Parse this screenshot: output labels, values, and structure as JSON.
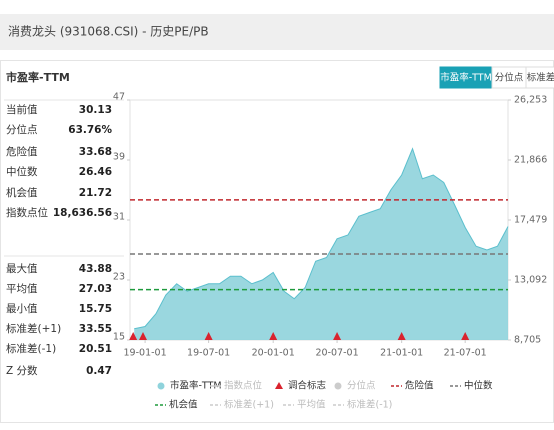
{
  "header": {
    "title": "消费龙头 (931068.CSI) - 历史PE/PB"
  },
  "panel_title": "市盈率-TTM",
  "tabs": [
    "市盈率-TTM",
    "分位点",
    "标准差"
  ],
  "stats_top": [
    {
      "label": "当前值",
      "value": "30.13"
    },
    {
      "label": "分位点",
      "value": "63.76%"
    },
    {
      "label": "危险值",
      "value": "33.68"
    },
    {
      "label": "中位数",
      "value": "26.46"
    },
    {
      "label": "机会值",
      "value": "21.72"
    },
    {
      "label": "指数点位",
      "value": "18,636.56"
    }
  ],
  "stats_bottom": [
    {
      "label": "最大值",
      "value": "43.88"
    },
    {
      "label": "平均值",
      "value": "27.03"
    },
    {
      "label": "最小值",
      "value": "15.75"
    },
    {
      "label": "标准差(+1)",
      "value": "33.55"
    },
    {
      "label": "标准差(-1)",
      "value": "20.51"
    },
    {
      "label": "Z 分数",
      "value": "0.47"
    }
  ],
  "chart_data": {
    "type": "area",
    "x": [
      "18-12-01",
      "19-01-01",
      "19-02-01",
      "19-03-01",
      "19-04-01",
      "19-05-01",
      "19-06-01",
      "19-07-01",
      "19-08-01",
      "19-09-01",
      "19-10-01",
      "19-11-01",
      "19-12-01",
      "20-01-01",
      "20-02-01",
      "20-03-01",
      "20-04-01",
      "20-05-01",
      "20-06-01",
      "20-07-01",
      "20-08-01",
      "20-09-01",
      "20-10-01",
      "20-11-01",
      "20-12-01",
      "21-01-01",
      "21-02-01",
      "21-03-01",
      "21-04-01",
      "21-05-01",
      "21-06-01",
      "21-07-01",
      "21-08-01",
      "21-09-01",
      "21-10-01",
      "21-10-31"
    ],
    "series": [
      {
        "name": "市盈率-TTM",
        "color": "#8fd3dc",
        "values": [
          16.5,
          16.8,
          18.5,
          21,
          22.5,
          21.5,
          22,
          22.5,
          22.5,
          23.5,
          23.5,
          22.5,
          23,
          24,
          21.5,
          20.5,
          22,
          25.5,
          26,
          28.5,
          29,
          31.5,
          32,
          32.5,
          35,
          37,
          40.5,
          36.5,
          37,
          36,
          33,
          30,
          27.5,
          27,
          27.5,
          30.13
        ]
      }
    ],
    "xlim": [
      "18-11-19",
      "21-10-31"
    ],
    "xticks": [
      "19-01-01",
      "19-07-01",
      "20-01-01",
      "20-07-01",
      "21-01-01",
      "21-07-01"
    ],
    "ylim": [
      15,
      47
    ],
    "yticks": [
      15,
      23,
      31,
      39,
      47
    ],
    "y2lim": [
      8705,
      26253
    ],
    "y2ticks": [
      {
        "value": 8705,
        "label": "8,705"
      },
      {
        "value": 13092,
        "label": "13,092"
      },
      {
        "value": 17479,
        "label": "17,479"
      },
      {
        "value": 21866,
        "label": "21,866"
      },
      {
        "value": 26253,
        "label": "26,253"
      }
    ],
    "reference_lines": [
      {
        "value": 33.68,
        "color": "#c0272d"
      },
      {
        "value": 26.46,
        "color": "#777777"
      },
      {
        "value": 21.72,
        "color": "#1e9a3c"
      }
    ],
    "markers": {
      "color": "#d9232e",
      "x": [
        "18-11-28",
        "18-12-26",
        "19-07-01",
        "20-01-01",
        "20-07-01",
        "21-01-01",
        "21-07-01"
      ]
    },
    "legend": [
      {
        "name": "市盈率-TTM",
        "symbol": "dot",
        "color": "#8fd3dc",
        "active": true
      },
      {
        "name": "指数点位",
        "symbol": "line",
        "color": "#cccccc",
        "active": false
      },
      {
        "name": "调合标志",
        "symbol": "triangle",
        "color": "#d9232e",
        "active": true
      },
      {
        "name": "分位点",
        "symbol": "dot",
        "color": "#cccccc",
        "active": false
      },
      {
        "name": "危险值",
        "symbol": "dash",
        "color": "#c0272d",
        "active": true
      },
      {
        "name": "中位数",
        "symbol": "dash",
        "color": "#777777",
        "active": true
      },
      {
        "name": "机会值",
        "symbol": "dash",
        "color": "#1e9a3c",
        "active": true
      },
      {
        "name": "标准差(+1)",
        "symbol": "dash",
        "color": "#cccccc",
        "active": false
      },
      {
        "name": "平均值",
        "symbol": "dash",
        "color": "#cccccc",
        "active": false
      },
      {
        "name": "标准差(-1)",
        "symbol": "dash",
        "color": "#cccccc",
        "active": false
      }
    ]
  }
}
